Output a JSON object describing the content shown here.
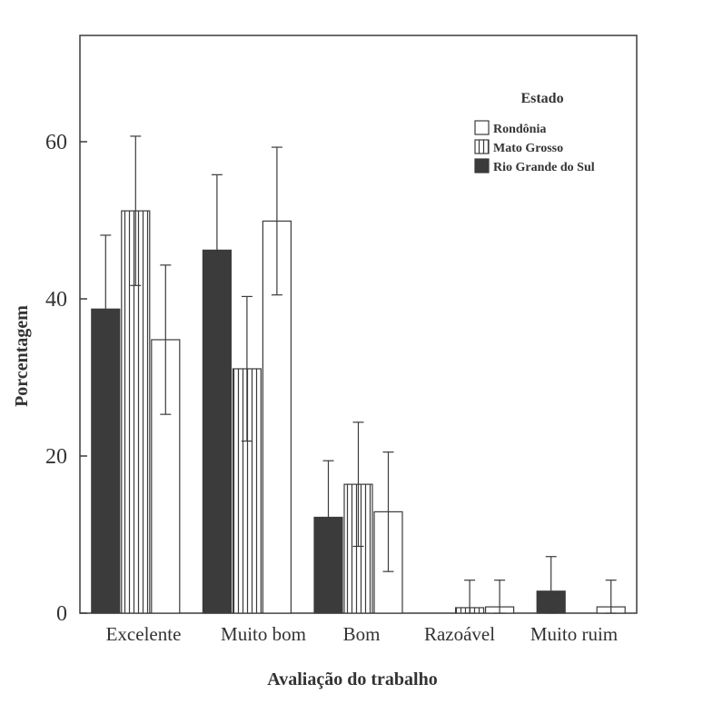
{
  "chart_data": {
    "type": "bar",
    "title": "",
    "xlabel": "Avaliação do trabalho",
    "ylabel": "Porcentagem",
    "ylim": [
      0,
      74
    ],
    "yticks": [
      0,
      20,
      40,
      60
    ],
    "grid": false,
    "categories": [
      "Excelente",
      "Muito bom",
      "Bom",
      "Razoável",
      "Muito ruim"
    ],
    "legend": {
      "title": "Estado",
      "placement": "top-right"
    },
    "series": [
      {
        "name": "Rio Grande do Sul",
        "style": "solid",
        "color": "#3b3b3b",
        "values": [
          38.7,
          46.2,
          12.2,
          0,
          2.8
        ],
        "error": [
          9.4,
          9.6,
          7.2,
          0,
          4.4
        ]
      },
      {
        "name": "Mato Grosso",
        "style": "vertical-lines",
        "color": "#3b3b3b",
        "values": [
          51.2,
          31.1,
          16.4,
          0.7,
          0
        ],
        "error": [
          9.5,
          9.2,
          7.9,
          3.5,
          0
        ]
      },
      {
        "name": "Rondônia",
        "style": "outline",
        "color": "#3b3b3b",
        "values": [
          34.8,
          49.9,
          12.9,
          0.8,
          0.8
        ],
        "error": [
          9.5,
          9.4,
          7.6,
          3.4,
          3.4
        ]
      }
    ],
    "legend_order": [
      "Rondônia",
      "Mato Grosso",
      "Rio Grande do Sul"
    ]
  }
}
